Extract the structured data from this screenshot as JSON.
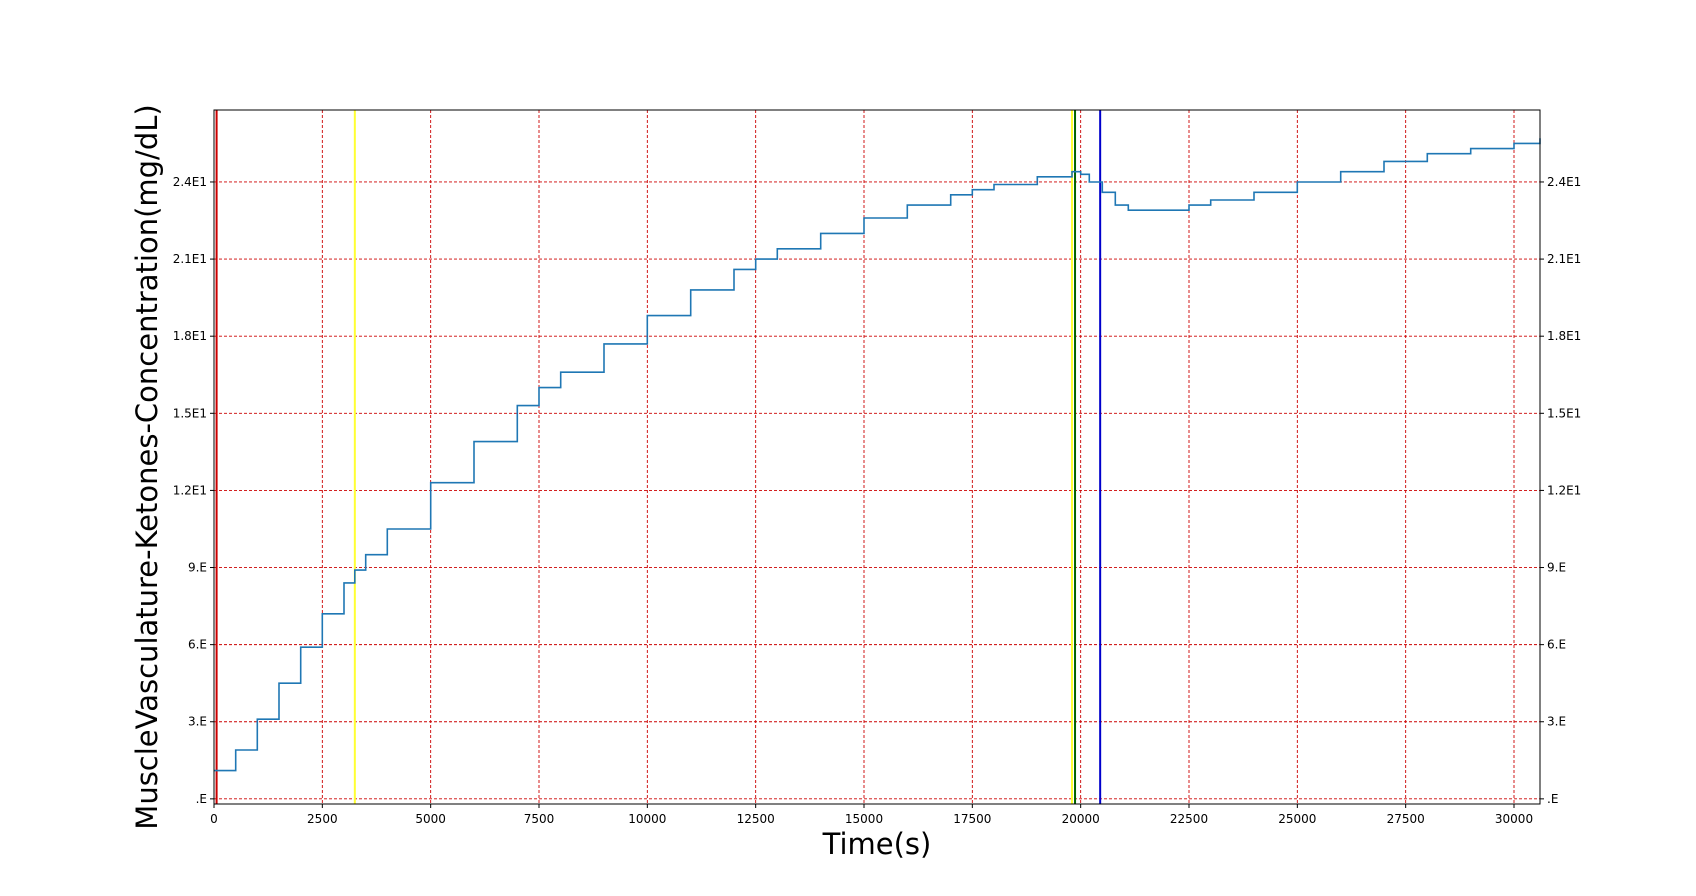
{
  "chart_data": {
    "type": "line",
    "title": "",
    "xlabel": "Time(s)",
    "ylabel": "MuscleVasculature-Ketones-Concentration(mg/dL)",
    "xlim": [
      0,
      30600
    ],
    "ylim": [
      -0.2,
      26.8
    ],
    "x_ticks": [
      0,
      2500,
      5000,
      7500,
      10000,
      12500,
      15000,
      17500,
      20000,
      22500,
      25000,
      27500,
      30000
    ],
    "x_tick_labels": [
      "0",
      "2500",
      "5000",
      "7500",
      "10000",
      "12500",
      "15000",
      "17500",
      "20000",
      "22500",
      "25000",
      "27500",
      "30000"
    ],
    "y_ticks": [
      0,
      3,
      6,
      9,
      12,
      15,
      18,
      21,
      24
    ],
    "y_tick_labels": [
      ".E",
      "3.E",
      "6.E",
      "9.E",
      "1.2E1",
      "1.5E1",
      "1.8E1",
      "2.1E1",
      "2.4E1"
    ],
    "y_ticks_right": true,
    "grid": true,
    "grid_color": "#cc0000",
    "grid_style": "dashed",
    "line_color": "#1f77b4",
    "series": [
      {
        "x": [
          0,
          500,
          1000,
          1500,
          2000,
          2500,
          3000,
          3250,
          3500,
          4000,
          5000,
          6000,
          7000,
          7500,
          8000,
          9000,
          10000,
          11000,
          12000,
          12500,
          13000,
          14000,
          15000,
          16000,
          17000,
          17500,
          18000,
          19000,
          19800,
          20000,
          20200,
          20500,
          20800,
          21100,
          21500,
          22000,
          22500,
          23000,
          24000,
          25000,
          26000,
          27000,
          28000,
          29000,
          30000,
          30600
        ],
        "y": [
          1.1,
          1.9,
          3.1,
          4.5,
          5.9,
          7.2,
          8.4,
          8.9,
          9.5,
          10.5,
          12.3,
          13.9,
          15.3,
          16.0,
          16.6,
          17.7,
          18.8,
          19.8,
          20.6,
          21.0,
          21.4,
          22.0,
          22.6,
          23.1,
          23.5,
          23.7,
          23.9,
          24.2,
          24.4,
          24.3,
          24.0,
          23.6,
          23.1,
          22.9,
          22.9,
          22.9,
          23.1,
          23.3,
          23.6,
          24.0,
          24.4,
          24.8,
          25.1,
          25.3,
          25.5,
          25.7
        ]
      }
    ],
    "vertical_lines": [
      {
        "x": 60,
        "color": "#cc0000"
      },
      {
        "x": 3250,
        "color": "#ffff33"
      },
      {
        "x": 19800,
        "color": "#ffff33"
      },
      {
        "x": 19870,
        "color": "#006400"
      },
      {
        "x": 20450,
        "color": "#0000cc"
      }
    ]
  }
}
